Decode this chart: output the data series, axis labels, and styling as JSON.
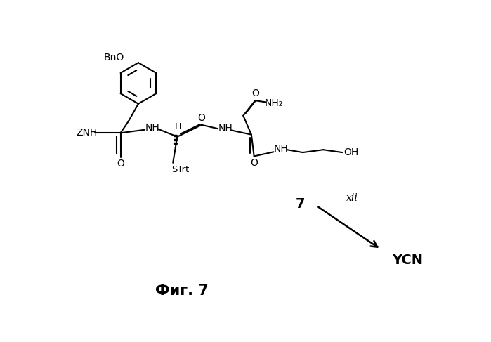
{
  "title": "Фиг. 7",
  "compound_number": "7",
  "reaction_label": "xii",
  "product": "YCN",
  "background": "#ffffff",
  "fig_width": 6.99,
  "fig_height": 4.87,
  "dpi": 100
}
